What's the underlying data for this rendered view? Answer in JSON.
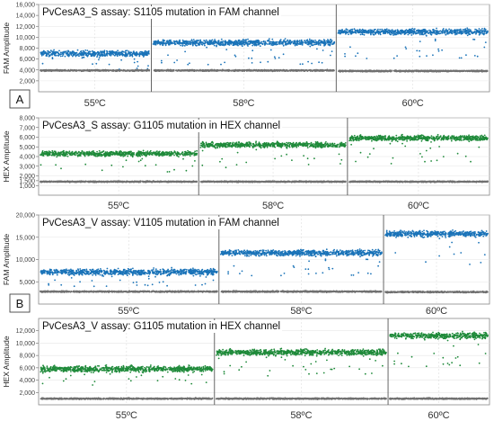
{
  "panels": [
    {
      "tag": "A"
    },
    {
      "tag": "B"
    }
  ],
  "chart_data": [
    {
      "type": "scatter",
      "title": "PvCesA3_S assay: S1105 mutation in FAM channel",
      "xlabel": "",
      "ylabel": "FAM Amplitude",
      "ylim": [
        0,
        16000
      ],
      "yticks": [
        2000,
        4000,
        6000,
        8000,
        10000,
        12000,
        14000,
        16000
      ],
      "well_labels": [
        "55ºC",
        "58ºC",
        "60ºC"
      ],
      "well_widths": [
        0.25,
        0.41,
        0.34
      ],
      "series": [
        {
          "name": "",
          "color": "#1a73b8",
          "values": [
            7000,
            9000,
            11000
          ]
        },
        {
          "name": "",
          "color": "#707070",
          "values": [
            3900,
            3900,
            3800
          ]
        }
      ]
    },
    {
      "type": "scatter",
      "title": "PvCesA3_S assay: G1105 mutation in HEX channel",
      "xlabel": "",
      "ylabel": "HEX Amplitude",
      "ylim": [
        0,
        8000
      ],
      "yticks": [
        1000,
        1500,
        2000,
        3000,
        4000,
        5000,
        6000,
        7000,
        8000
      ],
      "well_labels": [
        "55ºC",
        "58ºC",
        "60ºC"
      ],
      "well_widths": [
        0.355,
        0.33,
        0.315
      ],
      "series": [
        {
          "name": "",
          "color": "#1f8a3a",
          "values": [
            4300,
            5200,
            5900
          ]
        },
        {
          "name": "",
          "color": "#707070",
          "values": [
            1400,
            1400,
            1400
          ]
        }
      ]
    },
    {
      "type": "scatter",
      "title": "PvCesA3_V assay: V1105 mutation in FAM channel",
      "xlabel": "",
      "ylabel": "FAM Amplitude",
      "ylim": [
        0,
        20000
      ],
      "yticks": [
        5000,
        10000,
        15000,
        20000
      ],
      "well_labels": [
        "55ºC",
        "58ºC",
        "60ºC"
      ],
      "well_widths": [
        0.4,
        0.365,
        0.235
      ],
      "series": [
        {
          "name": "",
          "color": "#1a73b8",
          "values": [
            7200,
            11500,
            15800
          ]
        },
        {
          "name": "",
          "color": "#707070",
          "values": [
            2800,
            2800,
            2700
          ]
        }
      ]
    },
    {
      "type": "scatter",
      "title": "PvCesA3_V assay: G1105 mutation in HEX channel",
      "xlabel": "",
      "ylabel": "HEX Amplitude",
      "ylim": [
        0,
        14000
      ],
      "yticks": [
        2000,
        4000,
        6000,
        8000,
        10000,
        12000
      ],
      "well_labels": [
        "55ºC",
        "58ºC",
        "60ºC"
      ],
      "well_widths": [
        0.39,
        0.385,
        0.225
      ],
      "series": [
        {
          "name": "",
          "color": "#1f8a3a",
          "values": [
            5800,
            8500,
            11200
          ]
        },
        {
          "name": "",
          "color": "#707070",
          "values": [
            1000,
            1000,
            1000
          ]
        }
      ]
    }
  ]
}
